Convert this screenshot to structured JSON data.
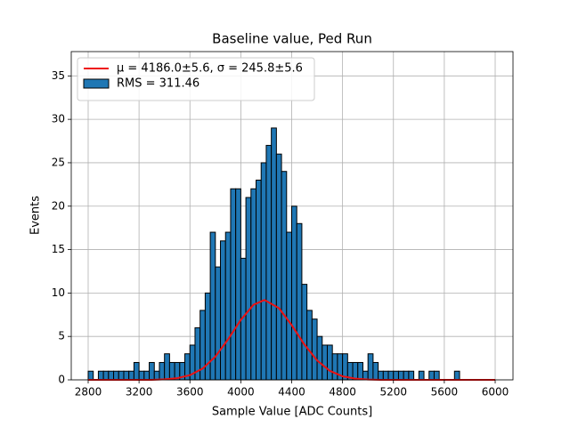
{
  "chart_data": {
    "type": "histogram",
    "title": "Baseline value, Ped Run",
    "xlabel": "Sample Value [ADC Counts]",
    "ylabel": "Events",
    "xlim": [
      2667,
      6140
    ],
    "ylim": [
      0,
      37.8
    ],
    "xticks": [
      2800,
      3200,
      3600,
      4000,
      4400,
      4800,
      5200,
      5600,
      6000
    ],
    "yticks": [
      0,
      5,
      10,
      15,
      20,
      25,
      30,
      35
    ],
    "grid": true,
    "legend": "upper left",
    "series": [
      {
        "type": "line",
        "name": "μ = 4186.0±5.6, σ = 245.8±5.6",
        "color": "#ee1111",
        "x": [
          2800,
          3300,
          3400,
          3500,
          3600,
          3700,
          3800,
          3900,
          4000,
          4100,
          4186,
          4300,
          4400,
          4500,
          4600,
          4700,
          4800,
          4900,
          5000,
          5100,
          6000
        ],
        "values": [
          0,
          0,
          0.06,
          0.19,
          0.54,
          1.3,
          2.68,
          4.67,
          6.91,
          8.65,
          9.2,
          8.26,
          6.3,
          4.07,
          2.23,
          1.03,
          0.41,
          0.14,
          0.04,
          0,
          0
        ]
      },
      {
        "type": "histogram",
        "name": "RMS = 311.46",
        "color": "#1f77b4",
        "edgecolor": "#000000",
        "bins": [
          2800,
          2840,
          2880,
          2920,
          2960,
          3000,
          3040,
          3080,
          3120,
          3160,
          3200,
          3240,
          3280,
          3320,
          3360,
          3400,
          3440,
          3480,
          3520,
          3560,
          3600,
          3640,
          3680,
          3720,
          3760,
          3800,
          3840,
          3880,
          3920,
          3960,
          4000,
          4040,
          4080,
          4120,
          4160,
          4200,
          4240,
          4280,
          4320,
          4360,
          4400,
          4440,
          4480,
          4520,
          4560,
          4600,
          4640,
          4680,
          4720,
          4760,
          4800,
          4840,
          4880,
          4920,
          4960,
          5000,
          5040,
          5080,
          5120,
          5160,
          5200,
          5240,
          5280,
          5320,
          5360,
          5400,
          5440,
          5480,
          5520,
          5560,
          5600,
          5640,
          5680,
          5720,
          5760,
          5800,
          5840,
          5880,
          5920,
          5960,
          6000
        ],
        "values": [
          1,
          0,
          1,
          1,
          1,
          1,
          1,
          1,
          1,
          2,
          1,
          1,
          2,
          1,
          2,
          3,
          2,
          2,
          2,
          3,
          4,
          6,
          8,
          10,
          17,
          13,
          16,
          17,
          22,
          22,
          14,
          21,
          22,
          23,
          25,
          27,
          29,
          26,
          24,
          17,
          20,
          18,
          11,
          8,
          7,
          5,
          4,
          4,
          3,
          3,
          3,
          2,
          2,
          2,
          1,
          3,
          2,
          1,
          1,
          1,
          1,
          1,
          1,
          1,
          0,
          1,
          0,
          1,
          1,
          0,
          0,
          0,
          1,
          0,
          0,
          0,
          0,
          0,
          0,
          0
        ]
      }
    ]
  }
}
